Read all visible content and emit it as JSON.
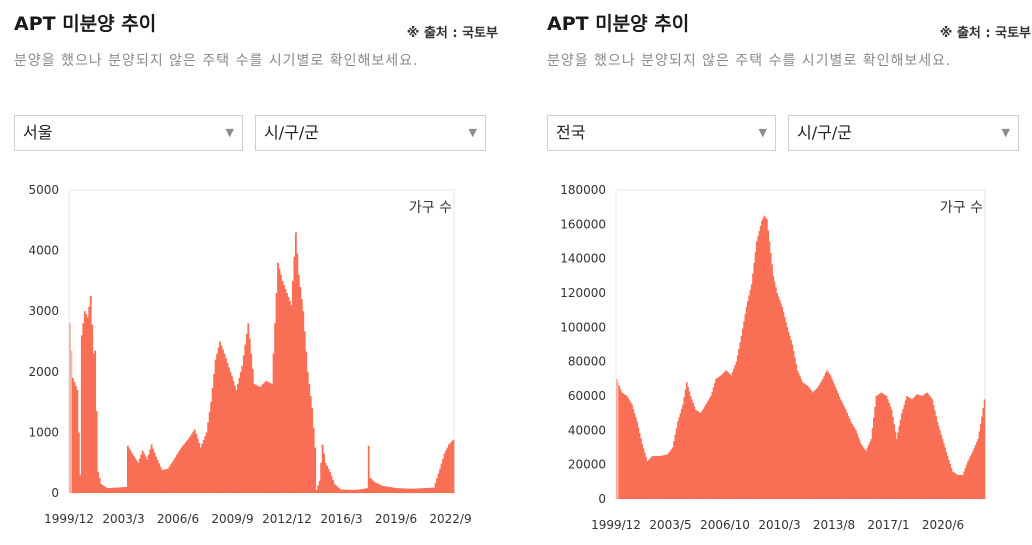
{
  "panels": [
    {
      "title": "APT 미분양 추이",
      "source": "※ 출처 : 국토부",
      "description": "분양을 했으나 분양되지 않은 주택 수를 시기별로 확인해보세요.",
      "region_select": "서울",
      "district_select": "시/구/군",
      "arrow_icon": "triangle-down-icon"
    },
    {
      "title": "APT 미분양 추이",
      "source": "※ 출처 : 국토부",
      "description": "분양을 했으나 분양되지 않은 주택 수를 시기별로 확인해보세요.",
      "region_select": "전국",
      "district_select": "시/구/군",
      "arrow_icon": "triangle-down-icon"
    }
  ],
  "colors": {
    "bar": "#f96f55",
    "bar_light": "#fab1a2",
    "axis_box": "#e6e6e6"
  },
  "chart_data": [
    {
      "type": "bar",
      "unit_label": "가구 수",
      "x_start": "1999/12",
      "x_ticks": [
        "1999/12",
        "2003/3",
        "2006/6",
        "2009/9",
        "2012/12",
        "2016/3",
        "2019/6",
        "2022/9"
      ],
      "y_ticks": [
        0,
        1000,
        2000,
        3000,
        4000,
        5000
      ],
      "ylim": [
        0,
        5000
      ],
      "series_keypoints": [
        [
          0,
          2800
        ],
        [
          2,
          1900
        ],
        [
          5,
          1700
        ],
        [
          7,
          300
        ],
        [
          8,
          2600
        ],
        [
          10,
          3000
        ],
        [
          12,
          2900
        ],
        [
          14,
          3250
        ],
        [
          16,
          2300
        ],
        [
          17,
          2350
        ],
        [
          19,
          350
        ],
        [
          21,
          150
        ],
        [
          25,
          80
        ],
        [
          38,
          100
        ],
        [
          39,
          780
        ],
        [
          42,
          650
        ],
        [
          46,
          500
        ],
        [
          49,
          700
        ],
        [
          52,
          550
        ],
        [
          55,
          800
        ],
        [
          58,
          600
        ],
        [
          62,
          380
        ],
        [
          66,
          400
        ],
        [
          70,
          550
        ],
        [
          75,
          750
        ],
        [
          80,
          900
        ],
        [
          84,
          1050
        ],
        [
          88,
          750
        ],
        [
          92,
          1000
        ],
        [
          95,
          1500
        ],
        [
          98,
          2200
        ],
        [
          101,
          2500
        ],
        [
          104,
          2300
        ],
        [
          108,
          2000
        ],
        [
          112,
          1700
        ],
        [
          116,
          2100
        ],
        [
          120,
          2800
        ],
        [
          122,
          2300
        ],
        [
          124,
          1800
        ],
        [
          128,
          1750
        ],
        [
          132,
          1850
        ],
        [
          136,
          1800
        ],
        [
          140,
          3800
        ],
        [
          143,
          3500
        ],
        [
          146,
          3300
        ],
        [
          149,
          3100
        ],
        [
          152,
          4300
        ],
        [
          154,
          3600
        ],
        [
          157,
          3000
        ],
        [
          160,
          2000
        ],
        [
          163,
          1400
        ],
        [
          165,
          750
        ],
        [
          166,
          50
        ],
        [
          168,
          200
        ],
        [
          170,
          800
        ],
        [
          172,
          500
        ],
        [
          175,
          350
        ],
        [
          178,
          150
        ],
        [
          182,
          60
        ],
        [
          190,
          50
        ],
        [
          196,
          60
        ],
        [
          200,
          80
        ],
        [
          201,
          780
        ],
        [
          202,
          250
        ],
        [
          205,
          180
        ],
        [
          210,
          120
        ],
        [
          215,
          100
        ],
        [
          220,
          80
        ],
        [
          230,
          70
        ],
        [
          238,
          80
        ],
        [
          245,
          90
        ],
        [
          249,
          400
        ],
        [
          252,
          650
        ],
        [
          255,
          800
        ],
        [
          258,
          880
        ]
      ]
    },
    {
      "type": "bar",
      "unit_label": "가구 수",
      "x_start": "1999/12",
      "x_ticks": [
        "1999/12",
        "2003/5",
        "2006/10",
        "2010/3",
        "2013/8",
        "2017/1",
        "2020/6"
      ],
      "y_ticks": [
        0,
        20000,
        40000,
        60000,
        80000,
        100000,
        120000,
        140000,
        160000,
        180000
      ],
      "ylim": [
        0,
        180000
      ],
      "series_keypoints": [
        [
          0,
          70000
        ],
        [
          4,
          62000
        ],
        [
          8,
          60000
        ],
        [
          12,
          55000
        ],
        [
          16,
          45000
        ],
        [
          20,
          32000
        ],
        [
          24,
          22000
        ],
        [
          28,
          25000
        ],
        [
          34,
          25000
        ],
        [
          40,
          26000
        ],
        [
          44,
          30000
        ],
        [
          48,
          45000
        ],
        [
          52,
          55000
        ],
        [
          55,
          68000
        ],
        [
          58,
          60000
        ],
        [
          62,
          52000
        ],
        [
          66,
          50000
        ],
        [
          70,
          55000
        ],
        [
          74,
          60000
        ],
        [
          78,
          70000
        ],
        [
          82,
          72000
        ],
        [
          86,
          75000
        ],
        [
          90,
          72000
        ],
        [
          94,
          80000
        ],
        [
          98,
          95000
        ],
        [
          102,
          112000
        ],
        [
          106,
          125000
        ],
        [
          110,
          150000
        ],
        [
          114,
          162000
        ],
        [
          116,
          165000
        ],
        [
          118,
          163000
        ],
        [
          120,
          150000
        ],
        [
          123,
          130000
        ],
        [
          126,
          120000
        ],
        [
          130,
          112000
        ],
        [
          134,
          100000
        ],
        [
          138,
          90000
        ],
        [
          142,
          75000
        ],
        [
          146,
          68000
        ],
        [
          150,
          66000
        ],
        [
          154,
          62000
        ],
        [
          158,
          65000
        ],
        [
          162,
          70000
        ],
        [
          165,
          75000
        ],
        [
          168,
          72000
        ],
        [
          172,
          65000
        ],
        [
          176,
          58000
        ],
        [
          180,
          52000
        ],
        [
          184,
          45000
        ],
        [
          188,
          40000
        ],
        [
          192,
          32000
        ],
        [
          196,
          28000
        ],
        [
          200,
          35000
        ],
        [
          204,
          60000
        ],
        [
          208,
          62000
        ],
        [
          212,
          60000
        ],
        [
          216,
          52000
        ],
        [
          220,
          35000
        ],
        [
          224,
          50000
        ],
        [
          228,
          60000
        ],
        [
          232,
          58000
        ],
        [
          236,
          61000
        ],
        [
          240,
          60000
        ],
        [
          244,
          62000
        ],
        [
          248,
          58000
        ],
        [
          252,
          45000
        ],
        [
          256,
          35000
        ],
        [
          260,
          25000
        ],
        [
          264,
          16000
        ],
        [
          268,
          14000
        ],
        [
          272,
          14000
        ],
        [
          276,
          22000
        ],
        [
          280,
          28000
        ],
        [
          284,
          35000
        ],
        [
          287,
          48000
        ],
        [
          289,
          58000
        ]
      ]
    }
  ]
}
